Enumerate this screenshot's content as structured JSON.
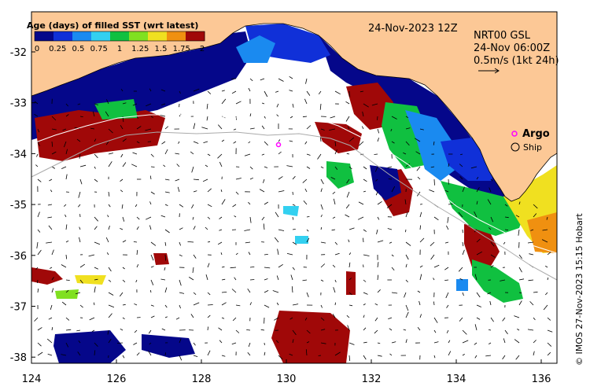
{
  "map": {
    "date_title": "24-Nov-2023 12Z",
    "product": "NRT00 GSL",
    "sst_time": "24-Nov 06:00Z",
    "vector_scale": "0.5m/s (1kt 24h)",
    "legend_argo": "Argo",
    "legend_ship": "Ship",
    "copyright": "© IMOS 27-Nov-2023 15:15 Hobart"
  },
  "colorbar": {
    "title": "Age (days) of filled SST (wrt latest)",
    "ticks": [
      "0",
      "0.25",
      "0.5",
      "0.75",
      "1",
      "1.25",
      "1.5",
      "1.75",
      "2"
    ],
    "colors": [
      "#05078a",
      "#1030d8",
      "#1a8af0",
      "#33d0f0",
      "#10c040",
      "#80e020",
      "#f0e020",
      "#f09010",
      "#a00808"
    ]
  },
  "axes": {
    "x_ticks": [
      "124",
      "126",
      "128",
      "130",
      "132",
      "134",
      "136"
    ],
    "y_ticks": [
      "-32",
      "-33",
      "-34",
      "-35",
      "-36",
      "-37",
      "-38"
    ]
  },
  "colors": {
    "land": "#fcc896",
    "ocean": "#ffffff",
    "argo": "#ff00ff"
  }
}
